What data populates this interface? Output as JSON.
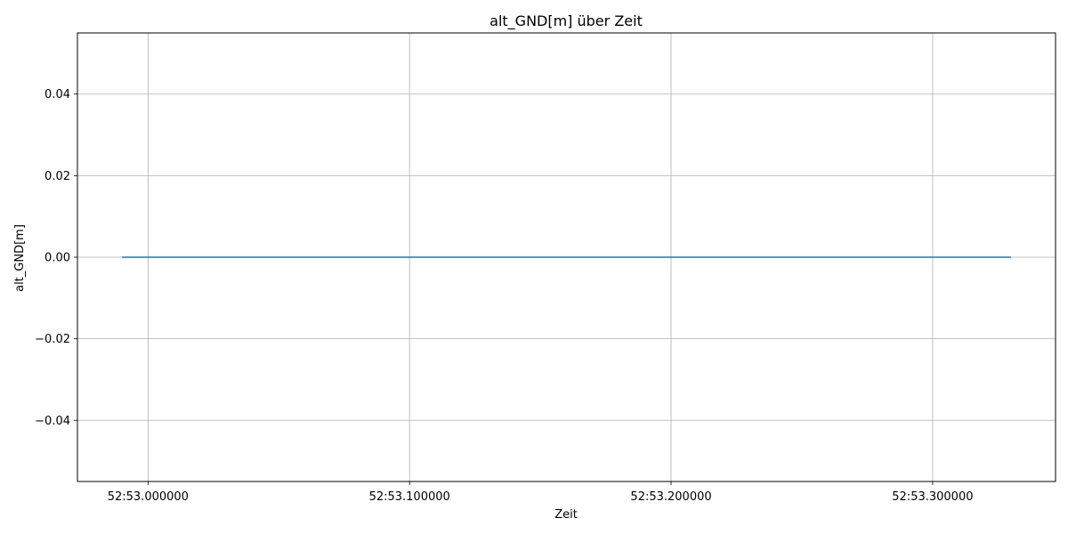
{
  "chart_data": {
    "type": "line",
    "title": "alt_GND[m] über Zeit",
    "xlabel": "Zeit",
    "ylabel": "alt_GND[m]",
    "xlim": [
      -0.027,
      0.347
    ],
    "ylim": [
      -0.055,
      0.055
    ],
    "grid": true,
    "x_ticks": [
      {
        "value": 0.0,
        "label": "52:53.000000"
      },
      {
        "value": 0.1,
        "label": "52:53.100000"
      },
      {
        "value": 0.2,
        "label": "52:53.200000"
      },
      {
        "value": 0.3,
        "label": "52:53.300000"
      }
    ],
    "y_ticks": [
      {
        "value": 0.04,
        "label": "0.04"
      },
      {
        "value": 0.02,
        "label": "0.02"
      },
      {
        "value": 0.0,
        "label": "0.00"
      },
      {
        "value": -0.02,
        "label": "−0.02"
      },
      {
        "value": -0.04,
        "label": "−0.04"
      }
    ],
    "series": [
      {
        "color": "#1f77b4",
        "x": [
          -0.01,
          0.0,
          0.1,
          0.2,
          0.3,
          0.33
        ],
        "y": [
          0,
          0,
          0,
          0,
          0,
          0
        ]
      }
    ]
  }
}
